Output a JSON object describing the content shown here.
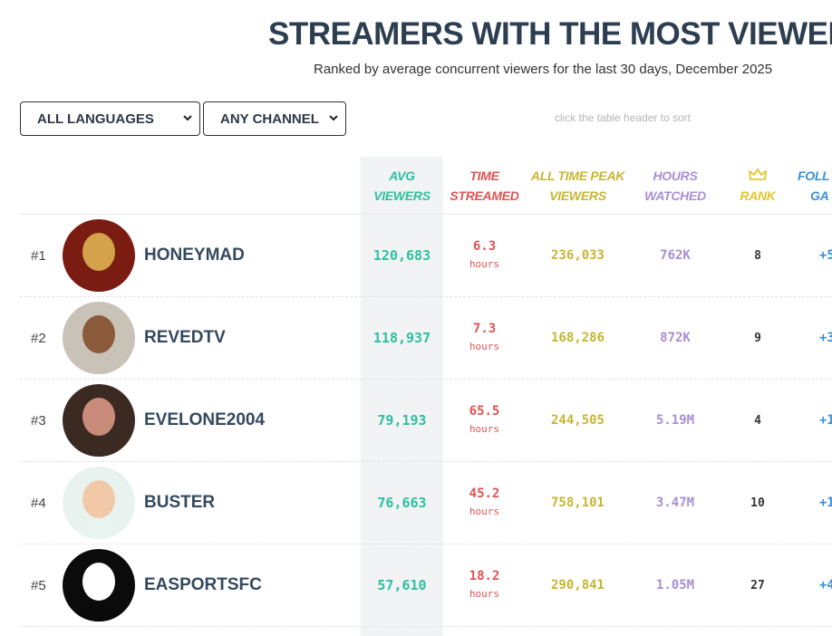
{
  "page": {
    "title": "STREAMERS WITH THE MOST VIEWERS",
    "subtitle": "Ranked by average concurrent viewers for the last 30 days, December 2025"
  },
  "filters": {
    "language": "ALL LANGUAGES",
    "channel": "ANY CHANNEL",
    "sort_hint": "click the table header to sort"
  },
  "columns": {
    "avg": [
      "AVG",
      "VIEWERS"
    ],
    "time": [
      "TIME",
      "STREAMED"
    ],
    "peak": [
      "ALL TIME PEAK",
      "VIEWERS"
    ],
    "hours": [
      "HOURS",
      "WATCHED"
    ],
    "rank": "RANK",
    "followers": [
      "FOLL",
      "GA"
    ]
  },
  "rows": [
    {
      "rank": "#1",
      "name": "HONEYMAD",
      "avg": "120,683",
      "time": "6.3",
      "time_unit": "hours",
      "peak": "236,033",
      "hours": "762K",
      "crank": "8",
      "foll": "+5",
      "avatar": "honeymad-avatar",
      "avatar_colors": [
        "#7a1c12",
        "#d4a24a"
      ]
    },
    {
      "rank": "#2",
      "name": "REVEDTV",
      "avg": "118,937",
      "time": "7.3",
      "time_unit": "hours",
      "peak": "168,286",
      "hours": "872K",
      "crank": "9",
      "foll": "+3",
      "avatar": "revedtv-avatar",
      "avatar_colors": [
        "#c9c2b7",
        "#8a5a3a"
      ]
    },
    {
      "rank": "#3",
      "name": "EVELONE2004",
      "avg": "79,193",
      "time": "65.5",
      "time_unit": "hours",
      "peak": "244,505",
      "hours": "5.19M",
      "crank": "4",
      "foll": "+1",
      "avatar": "evelone2004-avatar",
      "avatar_colors": [
        "#3b2a22",
        "#c98c7a"
      ]
    },
    {
      "rank": "#4",
      "name": "BUSTER",
      "avg": "76,663",
      "time": "45.2",
      "time_unit": "hours",
      "peak": "758,101",
      "hours": "3.47M",
      "crank": "10",
      "foll": "+1",
      "avatar": "buster-avatar",
      "avatar_colors": [
        "#e8f3f0",
        "#f1c9a8"
      ]
    },
    {
      "rank": "#5",
      "name": "EASPORTSFC",
      "avg": "57,610",
      "time": "18.2",
      "time_unit": "hours",
      "peak": "290,841",
      "hours": "1.05M",
      "crank": "27",
      "foll": "+4",
      "avatar": "easportsfc-avatar",
      "avatar_colors": [
        "#0b0b0b",
        "#ffffff"
      ]
    }
  ]
}
